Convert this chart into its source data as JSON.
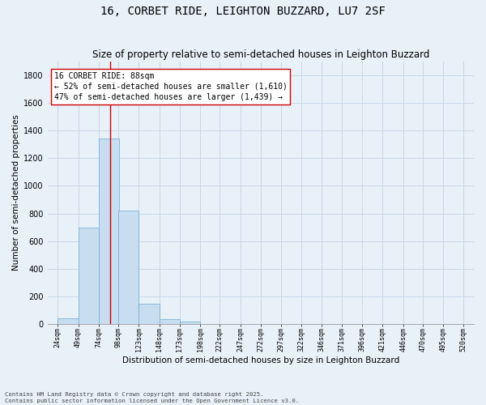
{
  "title": "16, CORBET RIDE, LEIGHTON BUZZARD, LU7 2SF",
  "subtitle": "Size of property relative to semi-detached houses in Leighton Buzzard",
  "xlabel": "Distribution of semi-detached houses by size in Leighton Buzzard",
  "ylabel": "Number of semi-detached properties",
  "footer": "Contains HM Land Registry data © Crown copyright and database right 2025.\nContains public sector information licensed under the Open Government Licence v3.0.",
  "bar_color": "#c9ddf0",
  "bar_edge_color": "#6aaad4",
  "grid_color": "#c8d8e8",
  "background_color": "#e8f0f8",
  "marker_color": "#cc0000",
  "marker_value": 88,
  "bin_left_edges": [
    24,
    49,
    74,
    98,
    123,
    148,
    173,
    198,
    222,
    247,
    272,
    297,
    322,
    346,
    371,
    396,
    421,
    446,
    470,
    495,
    520
  ],
  "bin_width": 25,
  "categories": [
    "24sqm",
    "49sqm",
    "74sqm",
    "98sqm",
    "123sqm",
    "148sqm",
    "173sqm",
    "198sqm",
    "222sqm",
    "247sqm",
    "272sqm",
    "297sqm",
    "322sqm",
    "346sqm",
    "371sqm",
    "396sqm",
    "421sqm",
    "446sqm",
    "470sqm",
    "495sqm",
    "520sqm"
  ],
  "values": [
    40,
    700,
    1340,
    820,
    150,
    35,
    20,
    0,
    0,
    0,
    0,
    0,
    0,
    0,
    0,
    0,
    0,
    0,
    0,
    0,
    0
  ],
  "ylim": [
    0,
    1900
  ],
  "yticks": [
    0,
    200,
    400,
    600,
    800,
    1000,
    1200,
    1400,
    1600,
    1800
  ],
  "annotation_title": "16 CORBET RIDE: 88sqm",
  "annotation_line1": "← 52% of semi-detached houses are smaller (1,610)",
  "annotation_line2": "47% of semi-detached houses are larger (1,439) →",
  "title_fontsize": 10,
  "subtitle_fontsize": 8.5,
  "annot_fontsize": 7,
  "ylabel_fontsize": 7.5,
  "xlabel_fontsize": 7.5,
  "ytick_fontsize": 7,
  "xtick_fontsize": 6
}
